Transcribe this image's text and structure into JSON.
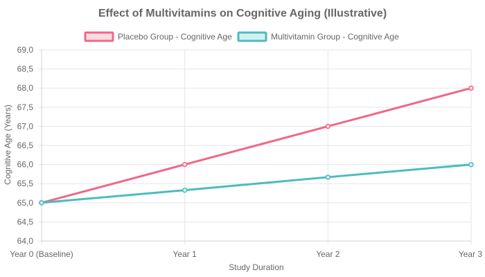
{
  "chart_data": {
    "type": "line",
    "title": "Effect of Multivitamins on Cognitive Aging (Illustrative)",
    "xlabel": "Study Duration",
    "ylabel": "Cognitive Age (Years)",
    "categories": [
      "Year 0 (Baseline)",
      "Year 1",
      "Year 2",
      "Year 3"
    ],
    "ylim": [
      64.0,
      69.0
    ],
    "yticks": [
      "64,0",
      "64,5",
      "65,0",
      "65,5",
      "66,0",
      "66,5",
      "67,0",
      "67,5",
      "68,0",
      "68,5",
      "69,0"
    ],
    "grid": true,
    "legend_position": "top",
    "series": [
      {
        "name": "Placebo Group - Cognitive Age",
        "values": [
          65.0,
          66.0,
          67.0,
          68.0
        ],
        "color": "#f06785",
        "fill": "#fcdbe3"
      },
      {
        "name": "Multivitamin Group - Cognitive Age",
        "values": [
          65.0,
          65.33,
          65.67,
          66.0
        ],
        "color": "#4bbcbd",
        "fill": "#d5f0f0"
      }
    ]
  }
}
